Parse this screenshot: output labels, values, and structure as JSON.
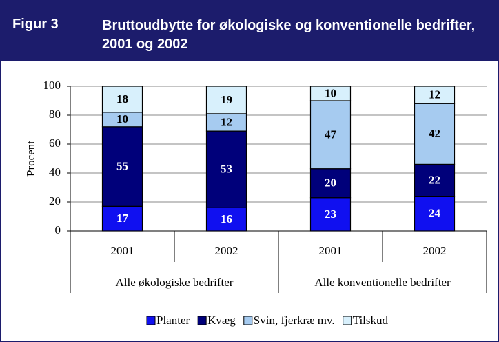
{
  "figure_label": "Figur 3",
  "chart_data": {
    "type": "stacked_bar",
    "title": "Bruttoudbytte for økologiske og konventionelle bedrifter, 2001 og 2002",
    "y_label": "Procent",
    "categories": [
      "2001",
      "2002",
      "2001",
      "2002"
    ],
    "groups": [
      "Alle økologiske bedrifter",
      "Alle konventionelle bedrifter"
    ],
    "series": [
      {
        "name": "Planter",
        "color": "#1010f0",
        "values": [
          17,
          16,
          23,
          24
        ]
      },
      {
        "name": "Kvæg",
        "color": "#00007a",
        "values": [
          55,
          53,
          20,
          22
        ]
      },
      {
        "name": "Svin, fjerkræ mv.",
        "color": "#a6cbf0",
        "values": [
          10,
          12,
          47,
          42
        ]
      },
      {
        "name": "Tilskud",
        "color": "#d8f0fc",
        "values": [
          18,
          19,
          10,
          12
        ]
      }
    ],
    "ylim": [
      0,
      100
    ],
    "yticks": [
      0,
      20,
      40,
      60,
      80,
      100
    ],
    "grid": true
  }
}
